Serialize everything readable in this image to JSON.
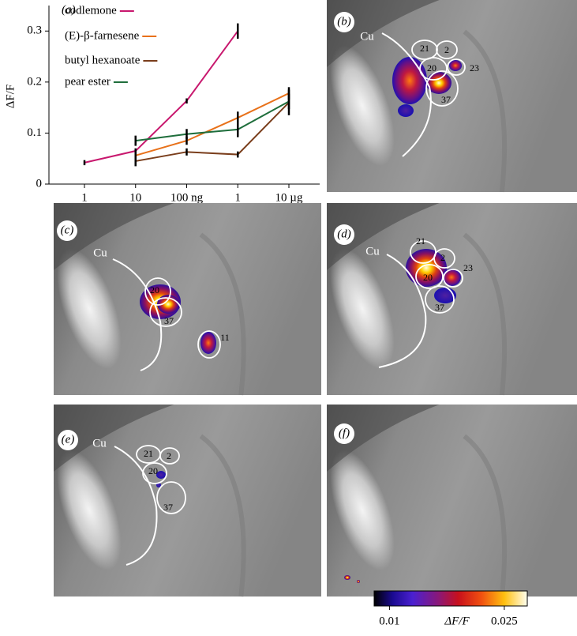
{
  "chart_data": {
    "type": "line",
    "label": "(a)",
    "y_label": "ΔF/F",
    "categories": [
      "1",
      "10",
      "100 ng",
      "1",
      "10 µg"
    ],
    "ylim": [
      0,
      0.35
    ],
    "yticks": [
      0,
      0.1,
      0.2,
      0.3
    ],
    "series": [
      {
        "name": "codlemone",
        "color": "#c8186e",
        "values": [
          0.042,
          0.065,
          0.163,
          0.3,
          null
        ],
        "errors": [
          0.005,
          0.005,
          0.005,
          0.015,
          null
        ]
      },
      {
        "name": "(E)-β-farnesene",
        "color": "#e8711a",
        "values": [
          null,
          0.056,
          0.085,
          0.13,
          0.178
        ],
        "errors": [
          null,
          0.01,
          0.008,
          0.012,
          0.012
        ]
      },
      {
        "name": "butyl hexanoate",
        "color": "#7a3e1c",
        "values": [
          null,
          0.045,
          0.063,
          0.058,
          0.16
        ],
        "errors": [
          null,
          0.01,
          0.007,
          0.006,
          0.025
        ]
      },
      {
        "name": "pear ester",
        "color": "#1f6e3c",
        "values": [
          null,
          0.085,
          0.098,
          0.107,
          0.162
        ],
        "errors": [
          null,
          0.01,
          0.01,
          0.015,
          0.015
        ]
      }
    ]
  },
  "panels": [
    {
      "label": "(b)",
      "texts": [
        "Cu",
        "21",
        "2",
        "20",
        "23",
        "37"
      ]
    },
    {
      "label": "(c)",
      "texts": [
        "Cu",
        "20",
        "37",
        "11"
      ]
    },
    {
      "label": "(d)",
      "texts": [
        "Cu",
        "21",
        "2",
        "20",
        "23",
        "37"
      ]
    },
    {
      "label": "(e)",
      "texts": [
        "Cu",
        "21",
        "2",
        "20",
        "37"
      ]
    },
    {
      "label": "(f)"
    }
  ],
  "colorbar": {
    "label": "ΔF/F",
    "lim": [
      0.008,
      0.028
    ],
    "ticks": [
      0.01,
      0.025
    ]
  }
}
